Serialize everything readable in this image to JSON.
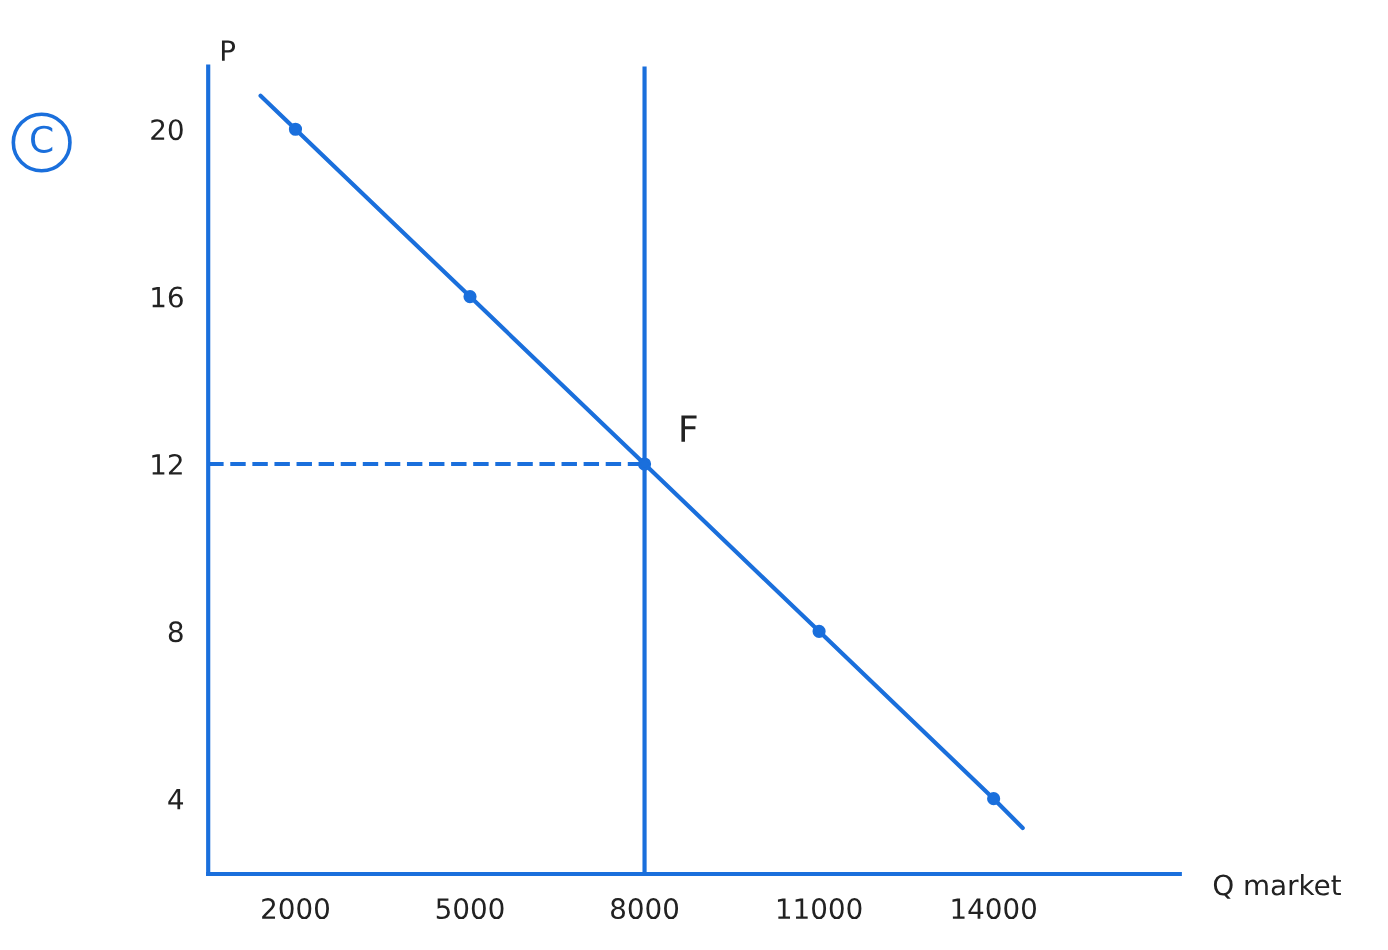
{
  "chart_data": {
    "type": "line",
    "ylabel": "P",
    "xlabel": "Q market",
    "annotations": [
      "C",
      {
        "text": "F",
        "x": 8000,
        "y": 12
      }
    ],
    "series": [
      {
        "color": "#1a6fdc",
        "x": [
          1400,
          2000,
          5000,
          8000,
          11000,
          14000,
          14500
        ],
        "values": [
          20.8,
          20,
          16,
          12,
          8,
          4,
          3.3
        ]
      },
      {
        "type": "scatter",
        "color": "#1a6fdc",
        "x": [
          2000,
          5000,
          8000,
          11000,
          14000
        ],
        "values": [
          20,
          16,
          12,
          8,
          4
        ]
      },
      {
        "type": "line",
        "color": "#1a6fdc",
        "line_style": "dashed",
        "x": [
          500,
          8000
        ],
        "values": [
          12,
          12
        ]
      }
    ],
    "ref_lines": [
      {
        "axis": "x",
        "value": 8000,
        "label": null,
        "color": "#1a6fdc"
      }
    ],
    "xlim": [
      500,
      17200
    ],
    "xticks": [
      2000,
      5000,
      8000,
      11000,
      14000
    ],
    "ylim": [
      2.2,
      21.5
    ],
    "yticks": [
      20,
      16,
      12,
      8,
      4
    ],
    "grid": false,
    "legend": false
  }
}
